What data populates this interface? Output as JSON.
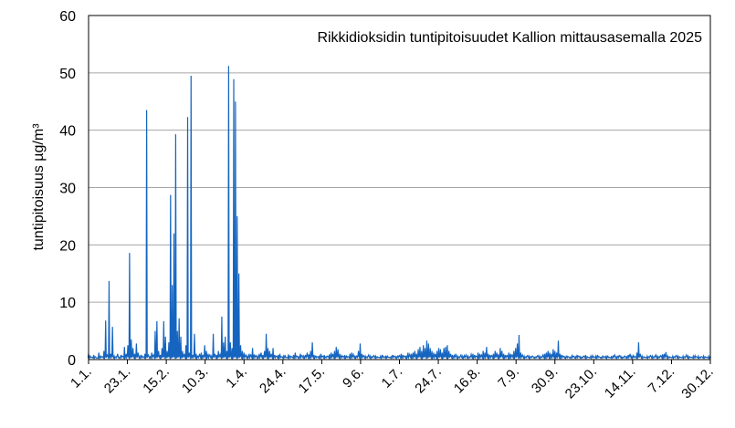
{
  "chart_data": {
    "type": "line",
    "title": "Rikkidioksidin tuntipitoisuudet Kallion mittausasemalla 2025",
    "xlabel": "",
    "ylabel": "tuntipitoisuus µg/m³",
    "ylim": [
      0,
      60
    ],
    "yticks": [
      0,
      10,
      20,
      30,
      40,
      50,
      60
    ],
    "xticks": [
      "1.1.",
      "23.1.",
      "15.2.",
      "10.3.",
      "1.4.",
      "24.4.",
      "17.5.",
      "9.6.",
      "1.7.",
      "24.7.",
      "16.8.",
      "7.9.",
      "30.9.",
      "23.10.",
      "14.11.",
      "7.12.",
      "30.12."
    ],
    "grid": true,
    "legend": "none",
    "color": "#1565C0",
    "series": [
      {
        "values": [
          1.0,
          0.6,
          0.4,
          0.8,
          0.5,
          0.3,
          1.2,
          0.6,
          0.5,
          1.5,
          6.8,
          0.8,
          13.7,
          1.0,
          5.7,
          0.6,
          0.5,
          1.0,
          0.4,
          0.8,
          0.6,
          2.2,
          1.0,
          2.5,
          18.6,
          3.5,
          2.0,
          1.0,
          2.8,
          1.2,
          0.6,
          0.8,
          0.5,
          1.0,
          43.5,
          0.8,
          0.5,
          1.2,
          0.8,
          5.0,
          6.7,
          1.5,
          0.8,
          2.0,
          6.7,
          4.0,
          1.5,
          3.0,
          28.7,
          13.0,
          22.0,
          39.3,
          5.0,
          7.2,
          4.0,
          1.5,
          1.0,
          2.5,
          42.3,
          1.2,
          49.5,
          0.8,
          4.5,
          1.0,
          0.6,
          1.0,
          1.2,
          0.8,
          2.5,
          1.5,
          1.0,
          0.8,
          0.6,
          4.5,
          1.0,
          0.8,
          1.5,
          0.9,
          7.5,
          3.0,
          4.0,
          1.5,
          51.2,
          3.0,
          2.0,
          48.9,
          45.0,
          25.0,
          15.0,
          2.5,
          1.5,
          1.2,
          0.8,
          0.6,
          1.0,
          0.8,
          2.0,
          0.9,
          0.7,
          0.6,
          1.0,
          1.2,
          0.8,
          1.5,
          4.5,
          2.0,
          1.5,
          1.0,
          2.0,
          0.8,
          0.6,
          0.8,
          1.0,
          0.5,
          0.6,
          0.8,
          0.4,
          0.9,
          0.6,
          0.5,
          0.8,
          1.2,
          0.6,
          0.5,
          1.0,
          0.7,
          0.6,
          0.8,
          1.2,
          0.9,
          1.5,
          3.0,
          0.8,
          0.6,
          0.5,
          0.7,
          1.0,
          0.6,
          0.8,
          0.5,
          0.6,
          0.9,
          1.2,
          1.0,
          1.5,
          2.2,
          1.8,
          1.0,
          0.7,
          0.6,
          0.8,
          0.6,
          0.5,
          1.0,
          1.2,
          0.9,
          0.7,
          0.6,
          1.5,
          2.8,
          1.0,
          0.7,
          0.6,
          0.5,
          0.8,
          0.6,
          0.5,
          0.7,
          0.6,
          0.5,
          0.4,
          0.6,
          0.8,
          0.5,
          0.7,
          0.6,
          0.4,
          0.5,
          0.8,
          0.6,
          0.5,
          0.6,
          0.7,
          1.0,
          0.8,
          0.6,
          0.7,
          1.2,
          0.9,
          1.0,
          1.2,
          1.5,
          1.0,
          1.8,
          2.2,
          1.5,
          2.5,
          2.0,
          3.3,
          2.8,
          2.0,
          1.5,
          1.2,
          1.0,
          1.5,
          2.0,
          1.8,
          1.2,
          2.0,
          2.2,
          2.5,
          1.5,
          1.0,
          0.8,
          0.7,
          1.0,
          0.6,
          0.5,
          0.8,
          0.6,
          0.7,
          0.8,
          0.6,
          0.5,
          0.9,
          1.0,
          0.8,
          0.6,
          1.2,
          1.0,
          0.8,
          1.5,
          1.2,
          2.2,
          1.0,
          0.8,
          0.7,
          1.0,
          1.5,
          1.2,
          0.9,
          2.0,
          1.5,
          1.0,
          0.8,
          0.7,
          1.2,
          1.0,
          0.8,
          1.5,
          2.0,
          2.8,
          4.3,
          1.2,
          0.8,
          0.6,
          0.5,
          0.7,
          0.6,
          0.5,
          0.6,
          0.4,
          0.5,
          0.7,
          0.6,
          0.5,
          0.8,
          1.0,
          1.2,
          1.5,
          1.2,
          1.0,
          1.8,
          1.5,
          1.2,
          3.3,
          1.0,
          0.8,
          0.6,
          0.5,
          0.6,
          0.5,
          0.4,
          0.7,
          0.6,
          0.5,
          0.8,
          0.6,
          0.5,
          0.4,
          0.6,
          0.8,
          0.5,
          0.4,
          0.6,
          0.7,
          0.5,
          0.6,
          0.8,
          0.5,
          0.4,
          0.6,
          0.5,
          0.7,
          0.6,
          0.4,
          0.5,
          0.6,
          0.8,
          0.5,
          0.6,
          0.7,
          0.5,
          0.4,
          0.6,
          0.5,
          0.8,
          1.0,
          0.6,
          0.7,
          0.5,
          1.2,
          3.0,
          1.0,
          0.6,
          0.5,
          0.4,
          0.6,
          0.5,
          0.7,
          0.6,
          0.5,
          0.8,
          0.6,
          0.5,
          0.7,
          0.9,
          1.0,
          1.3,
          0.6,
          0.5,
          0.4,
          0.6,
          0.5,
          0.7,
          0.6,
          0.5,
          0.4,
          0.6,
          0.5,
          0.8,
          0.6,
          0.5,
          0.4,
          0.6,
          0.7,
          0.5,
          0.6,
          0.4,
          0.5,
          0.6,
          0.5,
          0.4,
          0.6,
          0.5
        ]
      }
    ]
  }
}
